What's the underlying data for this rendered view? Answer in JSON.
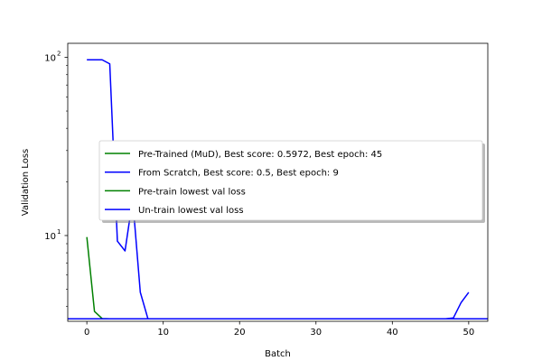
{
  "chart_data": {
    "type": "line",
    "xlabel": "Batch",
    "ylabel": "Validation Loss",
    "yscale": "log",
    "xlim": [
      -2.5,
      52.5
    ],
    "ylim": [
      3.3,
      120
    ],
    "xticks": [
      0,
      10,
      20,
      30,
      40,
      50
    ],
    "yticks": [
      {
        "value": 10,
        "label": "10",
        "sup": "1"
      },
      {
        "value": 100,
        "label": "10",
        "sup": "2"
      }
    ],
    "grid": false,
    "legend_position": "center-right",
    "series": [
      {
        "name": "Pre-Trained (MuD), Best score: 0.5972, Best epoch: 45",
        "color": "#008000",
        "x": [
          0,
          1,
          2,
          3,
          4,
          5,
          6,
          7,
          8,
          9,
          10,
          11,
          12,
          13,
          14,
          15,
          16,
          17,
          18,
          19,
          20,
          21,
          22,
          23,
          24,
          25,
          26,
          27,
          28,
          29,
          30,
          31,
          32,
          33,
          34,
          35,
          36,
          37,
          38,
          39,
          40,
          41,
          42,
          43,
          44,
          45,
          46,
          47,
          48,
          49,
          50
        ],
        "y": [
          9.8,
          3.75,
          3.42,
          3.41,
          3.41,
          3.41,
          3.41,
          3.41,
          3.41,
          3.41,
          3.41,
          3.41,
          3.41,
          3.41,
          3.41,
          3.41,
          3.41,
          3.41,
          3.41,
          3.41,
          3.41,
          3.41,
          3.41,
          3.41,
          3.41,
          3.41,
          3.41,
          3.41,
          3.41,
          3.41,
          3.41,
          3.41,
          3.41,
          3.41,
          3.41,
          3.41,
          3.41,
          3.41,
          3.41,
          3.41,
          3.41,
          3.41,
          3.41,
          3.41,
          3.41,
          3.41,
          3.41,
          3.41,
          3.41,
          3.41,
          3.41
        ]
      },
      {
        "name": "From Scratch, Best score: 0.5, Best epoch: 9",
        "color": "#0000ff",
        "x": [
          0,
          1,
          2,
          3,
          4,
          5,
          6,
          7,
          8,
          9,
          10,
          11,
          12,
          13,
          14,
          15,
          16,
          17,
          18,
          19,
          20,
          21,
          22,
          23,
          24,
          25,
          26,
          27,
          28,
          29,
          30,
          31,
          32,
          33,
          34,
          35,
          36,
          37,
          38,
          39,
          40,
          41,
          42,
          43,
          44,
          45,
          46,
          47,
          48,
          49,
          50
        ],
        "y": [
          97,
          97,
          97,
          92,
          9.3,
          8.2,
          16,
          4.8,
          3.41,
          3.41,
          3.41,
          3.41,
          3.41,
          3.41,
          3.41,
          3.41,
          3.41,
          3.41,
          3.41,
          3.41,
          3.41,
          3.41,
          3.41,
          3.41,
          3.41,
          3.41,
          3.41,
          3.41,
          3.41,
          3.41,
          3.41,
          3.41,
          3.41,
          3.41,
          3.41,
          3.41,
          3.41,
          3.41,
          3.41,
          3.41,
          3.41,
          3.41,
          3.41,
          3.41,
          3.41,
          3.41,
          3.41,
          3.41,
          3.45,
          4.2,
          4.8
        ]
      }
    ],
    "hlines": [
      {
        "name": "Pre-train lowest val loss",
        "color": "#008000",
        "y": 3.41
      },
      {
        "name": "Un-train lowest val loss",
        "color": "#0000ff",
        "y": 3.41
      }
    ]
  }
}
